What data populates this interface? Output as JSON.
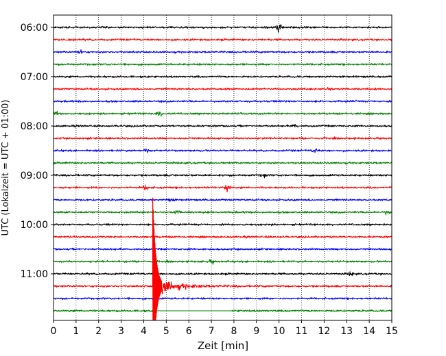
{
  "chart_data": {
    "type": "line",
    "title": "",
    "xlabel": "Zeit  [min]",
    "ylabel": "UTC (Lokalzeit = UTC + 01:00)",
    "xlim": [
      0,
      15
    ],
    "x_ticks": [
      0,
      1,
      2,
      3,
      4,
      5,
      6,
      7,
      8,
      9,
      10,
      11,
      12,
      13,
      14,
      15
    ],
    "y_tick_labels": [
      "06:00",
      "07:00",
      "08:00",
      "09:00",
      "10:00",
      "11:00"
    ],
    "rows_per_hour": 4,
    "grid": "vertical dotted lines at each minute",
    "row_colors": [
      "#000000",
      "#ff0000",
      "#0000ff",
      "#008000"
    ],
    "rows": [
      {
        "start": "06:00",
        "color": "#000000",
        "bursts": [
          {
            "t": 10.0,
            "amp": 1.5
          }
        ]
      },
      {
        "start": "06:15",
        "color": "#ff0000",
        "bursts": []
      },
      {
        "start": "06:30",
        "color": "#0000ff",
        "bursts": [
          {
            "t": 1.2,
            "amp": 0.6
          }
        ]
      },
      {
        "start": "06:45",
        "color": "#008000",
        "bursts": []
      },
      {
        "start": "07:00",
        "color": "#000000",
        "bursts": []
      },
      {
        "start": "07:15",
        "color": "#ff0000",
        "bursts": [
          {
            "t": 12.2,
            "amp": 0.6
          }
        ]
      },
      {
        "start": "07:30",
        "color": "#0000ff",
        "bursts": []
      },
      {
        "start": "07:45",
        "color": "#008000",
        "bursts": [
          {
            "t": 0.1,
            "amp": 0.6
          },
          {
            "t": 4.7,
            "amp": 0.8
          }
        ]
      },
      {
        "start": "08:00",
        "color": "#000000",
        "bursts": [
          {
            "t": 10.7,
            "amp": 0.6
          }
        ]
      },
      {
        "start": "08:15",
        "color": "#ff0000",
        "bursts": []
      },
      {
        "start": "08:30",
        "color": "#0000ff",
        "bursts": [
          {
            "t": 4.1,
            "amp": 0.6
          },
          {
            "t": 11.6,
            "amp": 0.6
          }
        ]
      },
      {
        "start": "08:45",
        "color": "#008000",
        "bursts": []
      },
      {
        "start": "09:00",
        "color": "#000000",
        "bursts": [
          {
            "t": 9.3,
            "amp": 0.5
          }
        ]
      },
      {
        "start": "09:15",
        "color": "#ff0000",
        "bursts": [
          {
            "t": 4.1,
            "amp": 0.9
          },
          {
            "t": 7.7,
            "amp": 1.6
          }
        ]
      },
      {
        "start": "09:30",
        "color": "#0000ff",
        "bursts": [
          {
            "t": 5.2,
            "amp": 0.6
          }
        ]
      },
      {
        "start": "09:45",
        "color": "#008000",
        "bursts": [
          {
            "t": 5.5,
            "amp": 0.6
          },
          {
            "t": 14.8,
            "amp": 0.6
          }
        ]
      },
      {
        "start": "10:00",
        "color": "#000000",
        "bursts": []
      },
      {
        "start": "10:15",
        "color": "#ff0000",
        "bursts": []
      },
      {
        "start": "10:30",
        "color": "#0000ff",
        "bursts": []
      },
      {
        "start": "10:45",
        "color": "#008000",
        "bursts": [
          {
            "t": 7.0,
            "amp": 0.5
          }
        ]
      },
      {
        "start": "11:00",
        "color": "#000000",
        "bursts": [
          {
            "t": 13.2,
            "amp": 0.6
          }
        ]
      },
      {
        "start": "11:15",
        "color": "#ff0000",
        "bursts": [],
        "event_onset": 4.4
      },
      {
        "start": "11:30",
        "color": "#0000ff",
        "bursts": []
      },
      {
        "start": "11:45",
        "color": "#008000",
        "bursts": [],
        "data_gap": [
          4.4,
          7.9
        ]
      }
    ],
    "event": {
      "row_index": 21,
      "onset_min": 4.4,
      "peak_min": 4.55,
      "amplitude_rows": 6.7
    }
  }
}
